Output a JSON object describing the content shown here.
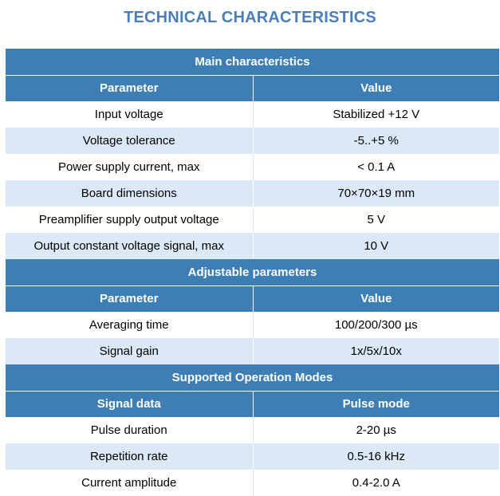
{
  "title": "TECHNICAL CHARACTERISTICS",
  "colors": {
    "accent": "#3d7fb5",
    "title": "#4a7ebb",
    "stripe": "#dbe8f5"
  },
  "sections": [
    {
      "heading": "Main characteristics",
      "columns": [
        "Parameter",
        "Value"
      ],
      "rows": [
        [
          "Input voltage",
          "Stabilized +12 V"
        ],
        [
          "Voltage tolerance",
          "-5..+5 %"
        ],
        [
          "Power supply current, max",
          "< 0.1 A"
        ],
        [
          "Board dimensions",
          "70×70×19 mm"
        ],
        [
          "Preamplifier supply output voltage",
          "5 V"
        ],
        [
          "Output constant voltage signal, max",
          "10 V"
        ]
      ]
    },
    {
      "heading": "Adjustable parameters",
      "columns": [
        "Parameter",
        "Value"
      ],
      "rows": [
        [
          "Averaging time",
          "100/200/300 µs"
        ],
        [
          "Signal gain",
          "1x/5x/10x"
        ]
      ]
    },
    {
      "heading": "Supported Operation Modes",
      "columns": [
        "Signal data",
        "Pulse mode"
      ],
      "rows": [
        [
          "Pulse duration",
          "2-20 µs"
        ],
        [
          "Repetition rate",
          "0.5-16 kHz"
        ],
        [
          "Current amplitude",
          "0.4-2.0 A"
        ]
      ]
    }
  ]
}
